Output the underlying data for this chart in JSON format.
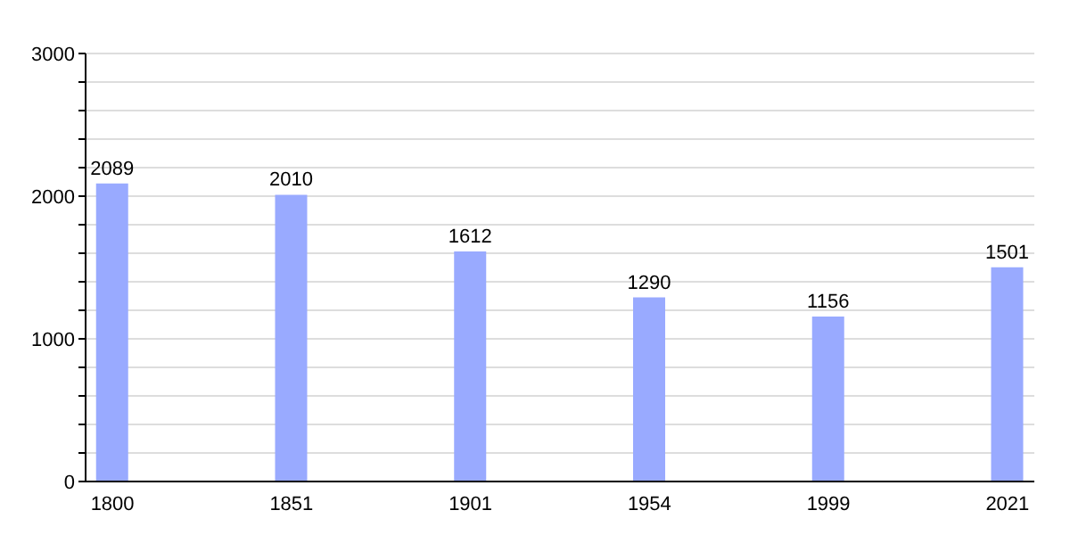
{
  "chart_data": {
    "type": "bar",
    "categories": [
      "1800",
      "1851",
      "1901",
      "1954",
      "1999",
      "2021"
    ],
    "values": [
      2089,
      2010,
      1612,
      1290,
      1156,
      1501
    ],
    "color": "#99aaff",
    "ylim": [
      0,
      3000
    ],
    "yticks": [
      0,
      {
        "value": 200,
        "label": null
      },
      {
        "value": 400,
        "label": null
      },
      {
        "value": 600,
        "label": null
      },
      {
        "value": 800,
        "label": null
      },
      1000,
      {
        "value": 1200,
        "label": null
      },
      {
        "value": 1400,
        "label": null
      },
      {
        "value": 1600,
        "label": null
      },
      {
        "value": 1800,
        "label": null
      },
      2000,
      {
        "value": 2200,
        "label": null
      },
      {
        "value": 2400,
        "label": null
      },
      {
        "value": 2600,
        "label": null
      },
      {
        "value": 2800,
        "label": null
      },
      3000
    ],
    "grid": "y",
    "data_labels": true
  }
}
